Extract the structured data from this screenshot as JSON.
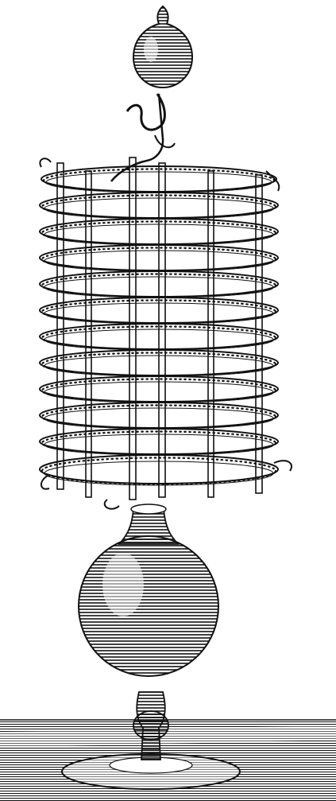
{
  "image": {
    "subject": "engraving-glass-coil-apparatus",
    "ink_color": "#111111",
    "paper_color": "#ffffff",
    "coil_turns": 12,
    "upright_bars": 6
  }
}
